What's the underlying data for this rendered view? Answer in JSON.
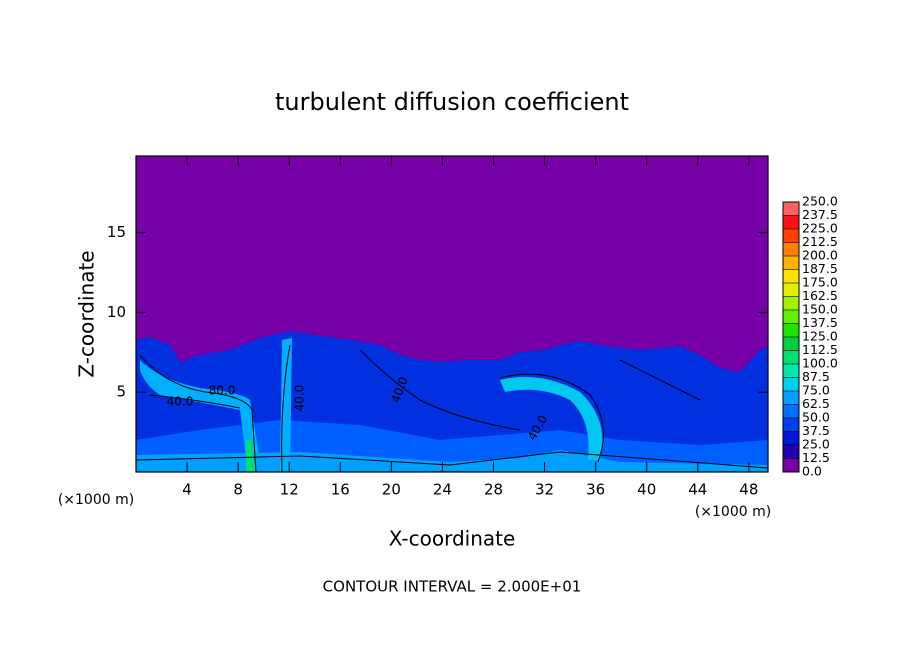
{
  "chart_data": {
    "type": "contour",
    "title": "turbulent diffusion coefficient",
    "xlabel": "X-coordinate",
    "ylabel": "Z-coordinate",
    "x_unit": "(×1000 m)",
    "xlim": [
      0,
      49.5
    ],
    "xticks": [
      4,
      8,
      12,
      16,
      20,
      24,
      28,
      32,
      36,
      40,
      44,
      48
    ],
    "ylim": [
      0,
      19.8
    ],
    "yticks": [
      5,
      10,
      15
    ],
    "colorbar": {
      "levels": [
        {
          "value": 0,
          "label": "0.0"
        },
        {
          "value": 12.5,
          "label": "12.5"
        },
        {
          "value": 25,
          "label": "25.0"
        },
        {
          "value": 37.5,
          "label": "37.5"
        },
        {
          "value": 50,
          "label": "50.0"
        },
        {
          "value": 62.5,
          "label": "62.5"
        },
        {
          "value": 75,
          "label": "75.0"
        },
        {
          "value": 87.5,
          "label": "87.5"
        },
        {
          "value": 100,
          "label": "100.0"
        },
        {
          "value": 112.5,
          "label": "112.5"
        },
        {
          "value": 125,
          "label": "125.0"
        },
        {
          "value": 137.5,
          "label": "137.5"
        },
        {
          "value": 150,
          "label": "150.0"
        },
        {
          "value": 162.5,
          "label": "162.5"
        },
        {
          "value": 175,
          "label": "175.0"
        },
        {
          "value": 187.5,
          "label": "187.5"
        },
        {
          "value": 200,
          "label": "200.0"
        },
        {
          "value": 212.5,
          "label": "212.5"
        },
        {
          "value": 225,
          "label": "225.0"
        },
        {
          "value": 237.5,
          "label": "237.5"
        },
        {
          "value": 250,
          "label": "250.0"
        }
      ],
      "colors": [
        "#7800a8",
        "#2400b4",
        "#0018d8",
        "#0040f0",
        "#0070ff",
        "#00a0ff",
        "#00d0f0",
        "#00e8b0",
        "#00e070",
        "#00d040",
        "#20e000",
        "#60f000",
        "#a0f000",
        "#e0f000",
        "#ffe000",
        "#ffb000",
        "#ff8000",
        "#ff4000",
        "#ff1010",
        "#ff6060"
      ]
    },
    "contour_labels": [
      "80.0",
      "40.0",
      "40.0",
      "40.0",
      "40.0"
    ],
    "note": "CONTOUR INTERVAL = 2.000E+01"
  }
}
